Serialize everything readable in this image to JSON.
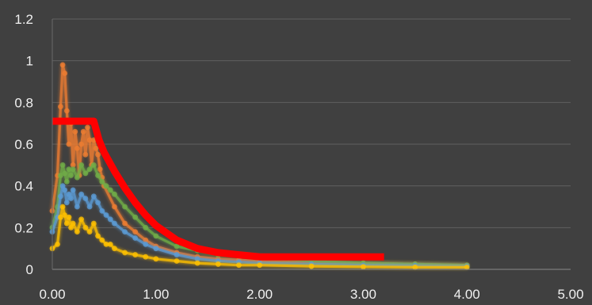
{
  "chart_data": {
    "type": "line",
    "title": "",
    "xlabel": "",
    "ylabel": "",
    "xlim": [
      0,
      5
    ],
    "ylim": [
      0,
      1.2
    ],
    "x_ticks": [
      "0.00",
      "1.00",
      "2.00",
      "3.00",
      "4.00",
      "5.00"
    ],
    "y_ticks": [
      "0",
      "0.2",
      "0.4",
      "0.6",
      "0.8",
      "1",
      "1.2"
    ],
    "grid": "horizontal",
    "legend": "none",
    "background": "#404040",
    "series": [
      {
        "color": "#ed7d31",
        "markers": true,
        "x": [
          0.0,
          0.05,
          0.08,
          0.1,
          0.12,
          0.14,
          0.16,
          0.18,
          0.2,
          0.22,
          0.24,
          0.26,
          0.28,
          0.3,
          0.32,
          0.34,
          0.36,
          0.38,
          0.4,
          0.42,
          0.44,
          0.46,
          0.48,
          0.5,
          0.6,
          0.7,
          0.8,
          0.9,
          1.0,
          1.2,
          1.4,
          1.6,
          1.8,
          2.0,
          2.5,
          3.0,
          3.5,
          4.0
        ],
        "y": [
          0.28,
          0.45,
          0.78,
          0.98,
          0.94,
          0.76,
          0.6,
          0.7,
          0.5,
          0.66,
          0.58,
          0.45,
          0.6,
          0.66,
          0.55,
          0.68,
          0.62,
          0.5,
          0.62,
          0.58,
          0.55,
          0.48,
          0.44,
          0.4,
          0.3,
          0.22,
          0.18,
          0.14,
          0.11,
          0.08,
          0.06,
          0.05,
          0.045,
          0.04,
          0.035,
          0.03,
          0.025,
          0.02
        ]
      },
      {
        "color": "#70ad47",
        "markers": true,
        "x": [
          0.0,
          0.05,
          0.08,
          0.1,
          0.12,
          0.14,
          0.16,
          0.18,
          0.2,
          0.24,
          0.28,
          0.32,
          0.36,
          0.4,
          0.44,
          0.48,
          0.52,
          0.56,
          0.6,
          0.7,
          0.8,
          0.9,
          1.0,
          1.2,
          1.4,
          1.6,
          1.8,
          2.0,
          2.5,
          3.0,
          3.5,
          4.0
        ],
        "y": [
          0.2,
          0.3,
          0.45,
          0.5,
          0.46,
          0.42,
          0.48,
          0.45,
          0.48,
          0.44,
          0.5,
          0.46,
          0.48,
          0.5,
          0.45,
          0.42,
          0.4,
          0.38,
          0.36,
          0.3,
          0.25,
          0.2,
          0.16,
          0.11,
          0.09,
          0.07,
          0.07,
          0.06,
          0.04,
          0.03,
          0.025,
          0.02
        ]
      },
      {
        "color": "#5b9bd5",
        "markers": true,
        "x": [
          0.0,
          0.05,
          0.08,
          0.1,
          0.12,
          0.14,
          0.16,
          0.18,
          0.2,
          0.24,
          0.28,
          0.32,
          0.36,
          0.4,
          0.44,
          0.48,
          0.52,
          0.56,
          0.6,
          0.7,
          0.8,
          0.9,
          1.0,
          1.2,
          1.4,
          1.6,
          1.8,
          2.0,
          2.5,
          3.0,
          3.5,
          4.0
        ],
        "y": [
          0.18,
          0.25,
          0.35,
          0.4,
          0.38,
          0.32,
          0.36,
          0.34,
          0.38,
          0.3,
          0.36,
          0.34,
          0.3,
          0.35,
          0.32,
          0.28,
          0.26,
          0.24,
          0.22,
          0.18,
          0.15,
          0.12,
          0.1,
          0.07,
          0.05,
          0.04,
          0.035,
          0.03,
          0.025,
          0.02,
          0.018,
          0.015
        ]
      },
      {
        "color": "#ffc000",
        "markers": true,
        "x": [
          0.0,
          0.05,
          0.08,
          0.1,
          0.12,
          0.14,
          0.16,
          0.18,
          0.2,
          0.24,
          0.28,
          0.32,
          0.36,
          0.4,
          0.44,
          0.48,
          0.52,
          0.56,
          0.6,
          0.7,
          0.8,
          0.9,
          1.0,
          1.2,
          1.4,
          1.6,
          1.8,
          2.0,
          2.5,
          3.0,
          3.5,
          4.0
        ],
        "y": [
          0.1,
          0.12,
          0.25,
          0.3,
          0.26,
          0.22,
          0.25,
          0.2,
          0.22,
          0.18,
          0.24,
          0.2,
          0.18,
          0.22,
          0.16,
          0.14,
          0.12,
          0.12,
          0.1,
          0.08,
          0.07,
          0.06,
          0.05,
          0.04,
          0.03,
          0.025,
          0.02,
          0.02,
          0.015,
          0.012,
          0.01,
          0.01
        ]
      },
      {
        "color": "#ff0000",
        "markers": false,
        "x": [
          0.0,
          0.1,
          0.2,
          0.3,
          0.4,
          0.45,
          0.5,
          0.6,
          0.7,
          0.8,
          0.9,
          1.0,
          1.2,
          1.4,
          1.6,
          1.8,
          2.0,
          2.5,
          3.0,
          3.2
        ],
        "y": [
          0.71,
          0.71,
          0.71,
          0.71,
          0.71,
          0.62,
          0.56,
          0.47,
          0.39,
          0.32,
          0.26,
          0.21,
          0.14,
          0.1,
          0.08,
          0.07,
          0.06,
          0.06,
          0.06,
          0.06
        ]
      }
    ]
  }
}
